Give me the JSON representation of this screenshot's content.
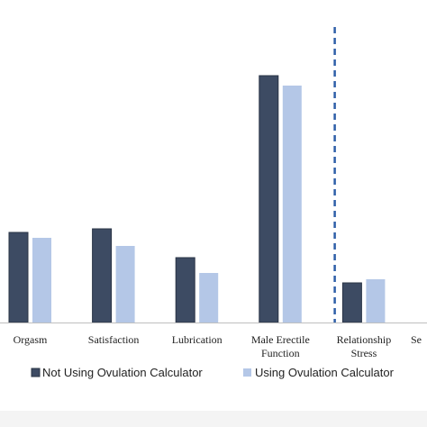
{
  "chart_data": {
    "type": "bar",
    "categories": [
      [
        "Orgasm"
      ],
      [
        "Satisfaction"
      ],
      [
        "Lubrication"
      ],
      [
        "Male Erectile",
        "Function"
      ],
      [
        "Relationship",
        "Stress"
      ],
      [
        "Se"
      ]
    ],
    "series": [
      {
        "name": "Not Using Ovulation Calculator",
        "color": "#3d4b63",
        "values": [
          100,
          104,
          72,
          274,
          44,
          null
        ]
      },
      {
        "name": "Using Ovulation Calculator",
        "color": "#b4c7e7",
        "values": [
          94,
          85,
          55,
          263,
          48,
          null
        ]
      }
    ],
    "ylim": [
      0,
      300
    ],
    "divider_after_category": 3,
    "divider_color": "#2e5fa8",
    "legend_position": "bottom"
  }
}
